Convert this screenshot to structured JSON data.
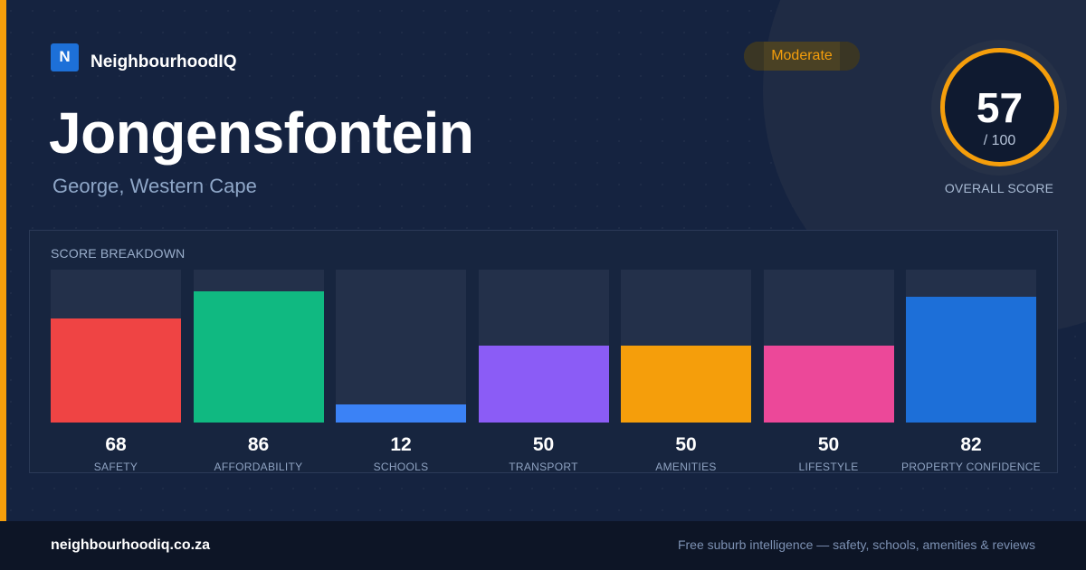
{
  "brand": {
    "logo_letter": "N",
    "name": "NeighbourhoodIQ"
  },
  "suburb": {
    "name": "Jongensfontein",
    "location": "George, Western Cape"
  },
  "rating": {
    "label": "Moderate",
    "color": "#f59e0b"
  },
  "overall": {
    "score": "57",
    "max": "/ 100",
    "label": "OVERALL SCORE",
    "fraction": 0.57
  },
  "breakdown": {
    "title": "SCORE BREAKDOWN",
    "items": [
      {
        "label": "SAFETY",
        "value": "68",
        "score": 68,
        "color": "#ef4444"
      },
      {
        "label": "AFFORDABILITY",
        "value": "86",
        "score": 86,
        "color": "#10b981"
      },
      {
        "label": "SCHOOLS",
        "value": "12",
        "score": 12,
        "color": "#3b82f6"
      },
      {
        "label": "TRANSPORT",
        "value": "50",
        "score": 50,
        "color": "#8b5cf6"
      },
      {
        "label": "AMENITIES",
        "value": "50",
        "score": 50,
        "color": "#f59e0b"
      },
      {
        "label": "LIFESTYLE",
        "value": "50",
        "score": 50,
        "color": "#ec4899"
      },
      {
        "label": "PROPERTY CONFIDENCE",
        "value": "82",
        "score": 82,
        "color": "#1d6fd8"
      }
    ]
  },
  "footer": {
    "url": "neighbourhoodiq.co.za",
    "tagline": "Free suburb intelligence — safety, schools, amenities & reviews"
  }
}
